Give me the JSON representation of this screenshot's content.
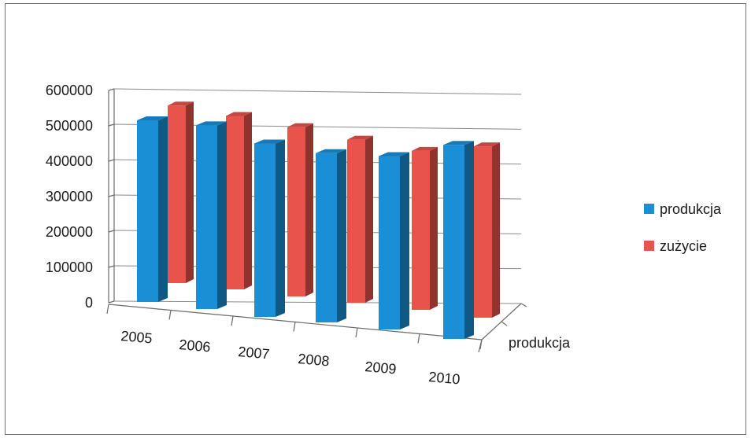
{
  "chart_data": {
    "type": "bar",
    "title": "",
    "categories": [
      "2005",
      "2006",
      "2007",
      "2008",
      "2009",
      "2010"
    ],
    "series": [
      {
        "name": "produkcja",
        "values": [
          440000,
          445000,
          420000,
          410000,
          420000,
          470000
        ],
        "color": "#1b8fd6"
      },
      {
        "name": "zużycie",
        "values": [
          430000,
          420000,
          410000,
          395000,
          385000,
          415000
        ],
        "color": "#e8534c"
      }
    ],
    "depth_axis_label": "produkcja",
    "ylim": [
      0,
      600000
    ],
    "y_ticks": [
      "0",
      "100000",
      "200000",
      "300000",
      "400000",
      "500000",
      "600000"
    ],
    "grid": true,
    "legend_position": "right",
    "xlabel": "",
    "ylabel": ""
  }
}
